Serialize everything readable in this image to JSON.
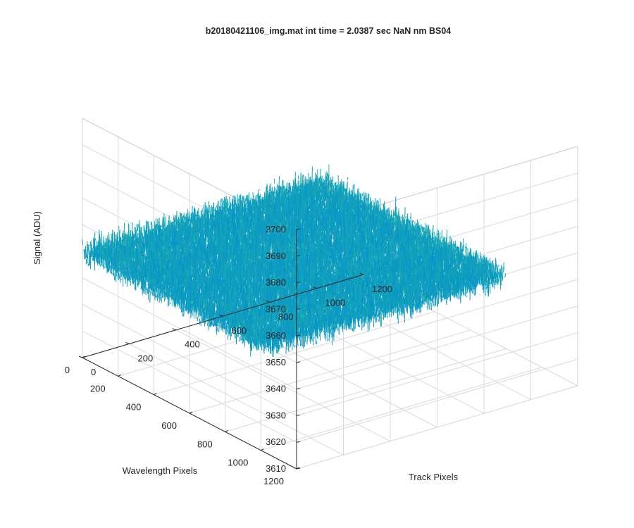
{
  "chart_data": {
    "type": "surface",
    "title": "b20180421106_img.mat int time = 2.0387 sec  NaN nm BS04",
    "xlabel": "Track Pixels",
    "ylabel": "Wavelength Pixels",
    "zlabel": "Signal (ADU)",
    "xlim": [
      0,
      1200
    ],
    "ylim": [
      0,
      1200
    ],
    "zlim": [
      3610,
      3700
    ],
    "xticks": [
      0,
      200,
      400,
      600,
      800,
      1000,
      1200
    ],
    "yticks": [
      0,
      200,
      400,
      600,
      800,
      1000,
      1200
    ],
    "zticks": [
      3610,
      3620,
      3630,
      3640,
      3650,
      3660,
      3670,
      3680,
      3690,
      3700
    ],
    "xtick_labels": [
      "0",
      "200",
      "400",
      "600",
      "800",
      "1000",
      "1200"
    ],
    "ytick_labels": [
      "0",
      "200",
      "400",
      "600",
      "800",
      "1000",
      "1200"
    ],
    "ztick_labels": [
      "3610",
      "3620",
      "3630",
      "3640",
      "3650",
      "3660",
      "3670",
      "3680",
      "3690",
      "3700"
    ],
    "grid": true,
    "colormap": "parula",
    "data_extent": {
      "x": [
        0,
        1024
      ],
      "y": [
        0,
        1024
      ]
    },
    "signal": {
      "mean": 3650,
      "min": 3612,
      "max": 3695
    },
    "colors": {
      "low": "#0072bd",
      "mid": "#21b2a8",
      "high": "#f0c23a",
      "axis": "#262626",
      "grid": "#d9d9d9"
    }
  }
}
